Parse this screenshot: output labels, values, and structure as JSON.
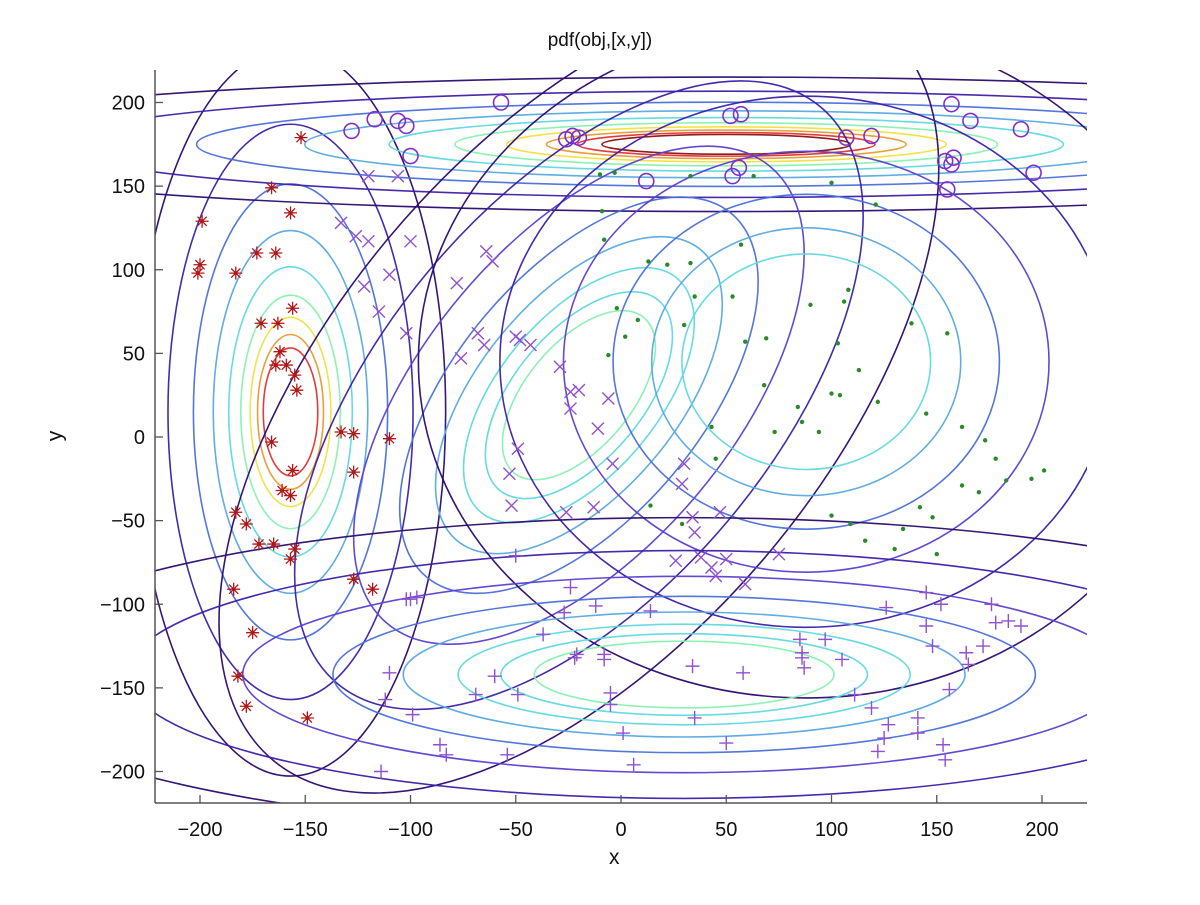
{
  "chart_data": {
    "type": "contour+scatter",
    "title": "pdf(obj,[x,y])",
    "xlabel": "x",
    "ylabel": "y",
    "xlim": [
      -220,
      220
    ],
    "ylim": [
      -220,
      220
    ],
    "xticks": [
      -200,
      -150,
      -100,
      -50,
      0,
      50,
      100,
      150,
      200
    ],
    "yticks": [
      -200,
      -150,
      -100,
      -50,
      0,
      50,
      100,
      150,
      200
    ],
    "grid": false,
    "legend": null,
    "axes_box": "left-bottom only",
    "contour_colormap": [
      "#2a0a6e",
      "#3b1fa8",
      "#5b3fd0",
      "#4a6fd8",
      "#58a8e0",
      "#5fd8e0",
      "#88f0b0",
      "#c8f060",
      "#f0e040",
      "#e89a30",
      "#e03030",
      "#8a1010"
    ],
    "components": [
      {
        "name": "red-asterisk cluster",
        "mean": [
          -157,
          15
        ],
        "sx": 22,
        "sy": 65,
        "rotation_deg": 0,
        "marker": "asterisk",
        "marker_color": "#b01818",
        "levels": 9
      },
      {
        "name": "violet-circle cluster",
        "mean": [
          50,
          175
        ],
        "sx": 120,
        "sy": 12,
        "rotation_deg": 0,
        "marker": "circle",
        "marker_color": "#8030c8",
        "levels": 10
      },
      {
        "name": "violet-x cluster",
        "mean": [
          -20,
          25
        ],
        "sx": 35,
        "sy": 85,
        "rotation_deg": -40,
        "marker": "x",
        "marker_color": "#9050d0",
        "levels": 8
      },
      {
        "name": "green-dot cluster",
        "mean": [
          88,
          45
        ],
        "sx": 55,
        "sy": 60,
        "rotation_deg": 0,
        "marker": "dot",
        "marker_color": "#2a8a2a",
        "levels": 6
      },
      {
        "name": "violet-plus cluster",
        "mean": [
          30,
          -142
        ],
        "sx": 100,
        "sy": 28,
        "rotation_deg": 0,
        "marker": "plus",
        "marker_color": "#9050d0",
        "levels": 8
      }
    ],
    "series": [
      {
        "name": "asterisk",
        "color": "#b01818",
        "points": [
          [
            -199,
            129
          ],
          [
            -200,
            103
          ],
          [
            -201,
            98
          ],
          [
            -183,
            98
          ],
          [
            -152,
            179
          ],
          [
            -166,
            149
          ],
          [
            -157,
            134
          ],
          [
            -173,
            110
          ],
          [
            -164,
            110
          ],
          [
            -156,
            77
          ],
          [
            -171,
            68
          ],
          [
            -163,
            68
          ],
          [
            -162,
            51
          ],
          [
            -164,
            43
          ],
          [
            -159,
            43
          ],
          [
            -155,
            37
          ],
          [
            -154,
            28
          ],
          [
            -166,
            -3
          ],
          [
            -156,
            -20
          ],
          [
            -161,
            -32
          ],
          [
            -157,
            -35
          ],
          [
            -133,
            3
          ],
          [
            -127,
            2
          ],
          [
            -127,
            -21
          ],
          [
            -110,
            -1
          ],
          [
            -183,
            -45
          ],
          [
            -178,
            -52
          ],
          [
            -172,
            -64
          ],
          [
            -165,
            -64
          ],
          [
            -155,
            -67
          ],
          [
            -157,
            -73
          ],
          [
            -127,
            -85
          ],
          [
            -118,
            -91
          ],
          [
            -184,
            -91
          ],
          [
            -175,
            -117
          ],
          [
            -182,
            -143
          ],
          [
            -178,
            -161
          ],
          [
            -149,
            -168
          ]
        ]
      },
      {
        "name": "circle",
        "color": "#8030c8",
        "points": [
          [
            -57,
            200
          ],
          [
            -117,
            190
          ],
          [
            -106,
            189
          ],
          [
            -102,
            186
          ],
          [
            -128,
            183
          ],
          [
            -100,
            168
          ],
          [
            -26,
            178
          ],
          [
            -23,
            180
          ],
          [
            -20,
            179
          ],
          [
            12,
            153
          ],
          [
            53,
            156
          ],
          [
            56,
            161
          ],
          [
            52,
            192
          ],
          [
            57,
            193
          ],
          [
            107,
            179
          ],
          [
            119,
            180
          ],
          [
            157,
            199
          ],
          [
            166,
            189
          ],
          [
            190,
            184
          ],
          [
            154,
            165
          ],
          [
            157,
            163
          ],
          [
            158,
            167
          ],
          [
            155,
            148
          ],
          [
            196,
            158
          ]
        ]
      },
      {
        "name": "x",
        "color": "#9050d0",
        "points": [
          [
            -133,
            128
          ],
          [
            -120,
            156
          ],
          [
            -106,
            156
          ],
          [
            -126,
            120
          ],
          [
            -120,
            117
          ],
          [
            -100,
            117
          ],
          [
            -110,
            97
          ],
          [
            -78,
            92
          ],
          [
            -64,
            111
          ],
          [
            -61,
            105
          ],
          [
            -122,
            90
          ],
          [
            -115,
            75
          ],
          [
            -102,
            62
          ],
          [
            -68,
            62
          ],
          [
            -65,
            55
          ],
          [
            -76,
            47
          ],
          [
            -50,
            60
          ],
          [
            -48,
            58
          ],
          [
            -43,
            55
          ],
          [
            -29,
            42
          ],
          [
            -24,
            27
          ],
          [
            -20,
            28
          ],
          [
            -24,
            17
          ],
          [
            -6,
            23
          ],
          [
            -11,
            5
          ],
          [
            -4,
            -16
          ],
          [
            -53,
            -22
          ],
          [
            -49,
            -7
          ],
          [
            -52,
            -41
          ],
          [
            -26,
            -45
          ],
          [
            -13,
            -42
          ],
          [
            30,
            -16
          ],
          [
            29,
            -28
          ],
          [
            34,
            -48
          ],
          [
            35,
            -57
          ],
          [
            47,
            -45
          ],
          [
            26,
            -74
          ],
          [
            38,
            -72
          ],
          [
            43,
            -78
          ],
          [
            45,
            -83
          ],
          [
            59,
            -88
          ],
          [
            50,
            -73
          ],
          [
            75,
            -70
          ]
        ]
      },
      {
        "name": "dot",
        "color": "#2a8a2a",
        "points": [
          [
            -10,
            157
          ],
          [
            -3,
            158
          ],
          [
            33,
            156
          ],
          [
            63,
            156
          ],
          [
            100,
            152
          ],
          [
            -9,
            135
          ],
          [
            -8,
            118
          ],
          [
            13,
            105
          ],
          [
            22,
            103
          ],
          [
            33,
            104
          ],
          [
            57,
            115
          ],
          [
            121,
            139
          ],
          [
            35,
            84
          ],
          [
            53,
            84
          ],
          [
            90,
            79
          ],
          [
            106,
            81
          ],
          [
            108,
            88
          ],
          [
            138,
            68
          ],
          [
            155,
            62
          ],
          [
            -2,
            77
          ],
          [
            8,
            70
          ],
          [
            30,
            67
          ],
          [
            59,
            57
          ],
          [
            69,
            59
          ],
          [
            103,
            56
          ],
          [
            113,
            40
          ],
          [
            68,
            31
          ],
          [
            122,
            21
          ],
          [
            145,
            14
          ],
          [
            162,
            6
          ],
          [
            173,
            -2
          ],
          [
            178,
            -13
          ],
          [
            183,
            -26
          ],
          [
            100,
            26
          ],
          [
            104,
            25
          ],
          [
            84,
            18
          ],
          [
            86,
            9
          ],
          [
            94,
            3
          ],
          [
            73,
            3
          ],
          [
            2,
            60
          ],
          [
            -6,
            49
          ],
          [
            43,
            6
          ],
          [
            45,
            -13
          ],
          [
            14,
            -41
          ],
          [
            29,
            -52
          ],
          [
            100,
            -47
          ],
          [
            109,
            -52
          ],
          [
            116,
            -62
          ],
          [
            142,
            -42
          ],
          [
            148,
            -48
          ],
          [
            162,
            -29
          ],
          [
            134,
            -55
          ],
          [
            150,
            -70
          ],
          [
            130,
            -67
          ],
          [
            170,
            -33
          ],
          [
            195,
            -25
          ],
          [
            201,
            -20
          ]
        ]
      },
      {
        "name": "plus",
        "color": "#9050d0",
        "points": [
          [
            -50,
            -71
          ],
          [
            -24,
            -90
          ],
          [
            -97,
            -96
          ],
          [
            -100,
            -97
          ],
          [
            -102,
            -97
          ],
          [
            -12,
            -101
          ],
          [
            14,
            -104
          ],
          [
            -27,
            -105
          ],
          [
            -110,
            -141
          ],
          [
            -112,
            -157
          ],
          [
            -37,
            -118
          ],
          [
            -21,
            -130
          ],
          [
            -22,
            -132
          ],
          [
            -8,
            -130
          ],
          [
            -8,
            -133
          ],
          [
            -60,
            -143
          ],
          [
            -49,
            -154
          ],
          [
            -69,
            -154
          ],
          [
            -99,
            -166
          ],
          [
            -86,
            -184
          ],
          [
            -83,
            -190
          ],
          [
            -54,
            -190
          ],
          [
            -114,
            -200
          ],
          [
            1,
            -177
          ],
          [
            6,
            -196
          ],
          [
            -5,
            -160
          ],
          [
            34,
            -137
          ],
          [
            35,
            -168
          ],
          [
            50,
            -183
          ],
          [
            58,
            -141
          ],
          [
            -5,
            -153
          ],
          [
            85,
            -121
          ],
          [
            86,
            -132
          ],
          [
            86,
            -129
          ],
          [
            87,
            -138
          ],
          [
            105,
            -133
          ],
          [
            111,
            -154
          ],
          [
            119,
            -162
          ],
          [
            125,
            -180
          ],
          [
            122,
            -188
          ],
          [
            141,
            -177
          ],
          [
            153,
            -184
          ],
          [
            154,
            -193
          ],
          [
            127,
            -172
          ],
          [
            145,
            -93
          ],
          [
            152,
            -100
          ],
          [
            148,
            -125
          ],
          [
            145,
            -113
          ],
          [
            164,
            -129
          ],
          [
            172,
            -125
          ],
          [
            178,
            -111
          ],
          [
            184,
            -110
          ],
          [
            190,
            -113
          ],
          [
            176,
            -100
          ],
          [
            156,
            -151
          ],
          [
            165,
            -136
          ],
          [
            141,
            -168
          ],
          [
            97,
            -121
          ],
          [
            126,
            -102
          ]
        ]
      }
    ]
  }
}
